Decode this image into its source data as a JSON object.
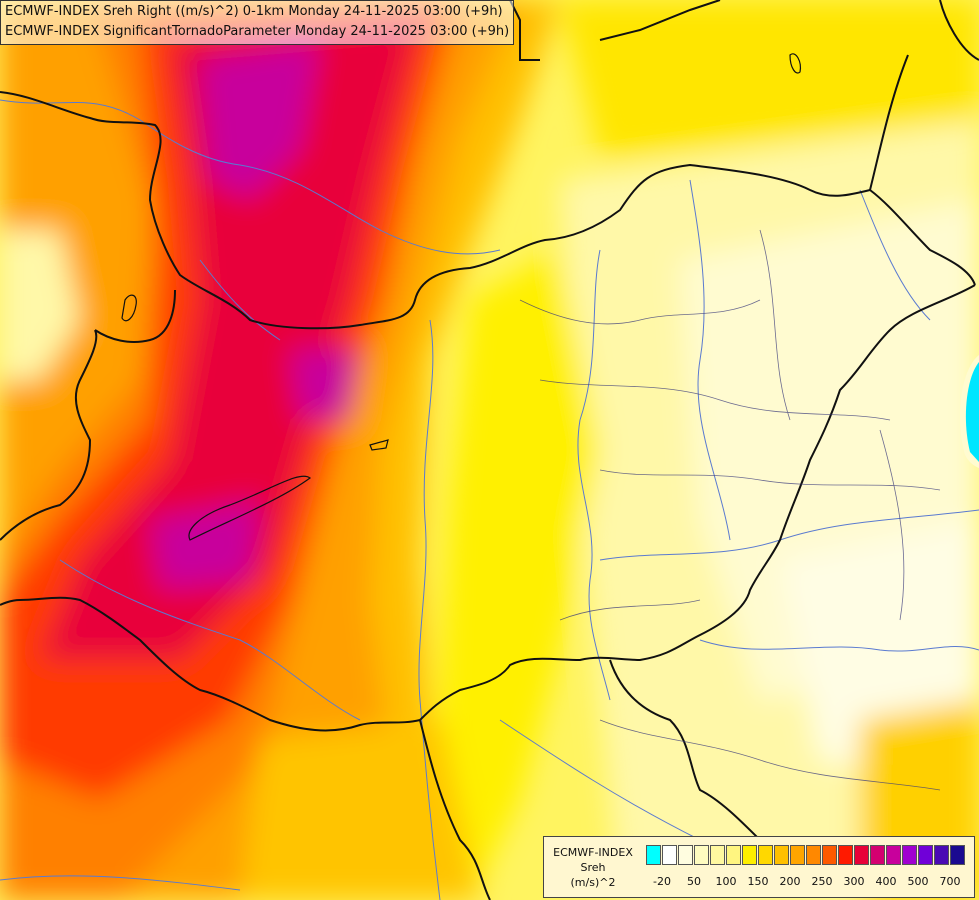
{
  "header": {
    "line1": "ECMWF-INDEX Sreh Right ((m/s)^2) 0-1km Monday 24-11-2025 03:00 (+9h)",
    "line2": "ECMWF-INDEX SignificantTornadoParameter Monday 24-11-2025 03:00 (+9h)"
  },
  "legend": {
    "line1": "ECMWF-INDEX",
    "line2": "Sreh",
    "line3": "(m/s)^2",
    "colors": [
      "#00ffff",
      "#ffffff",
      "#fffde0",
      "#fffcc0",
      "#fff8a0",
      "#fff580",
      "#ffef00",
      "#ffd800",
      "#ffc000",
      "#ffa500",
      "#ff8800",
      "#ff5a00",
      "#ff1a00",
      "#e80038",
      "#d40070",
      "#c8009c",
      "#a000d0",
      "#7000d8",
      "#4a0ab4",
      "#1a0a90"
    ],
    "ticks": [
      "-20",
      "50",
      "100",
      "150",
      "200",
      "250",
      "300",
      "400",
      "500",
      "700"
    ]
  }
}
